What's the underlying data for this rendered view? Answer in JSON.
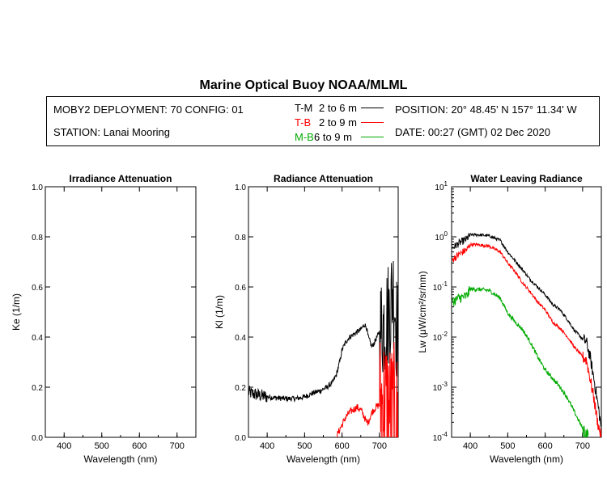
{
  "title": "Marine Optical Buoy NOAA/MLML",
  "info": {
    "deployment": "MOBY2 DEPLOYMENT: 70 CONFIG: 01",
    "station": "STATION: Lanai Mooring",
    "position": "POSITION: 20° 48.45' N   157° 11.34' W",
    "date": "DATE: 00:27 (GMT) 02 Dec 2020",
    "legend": [
      {
        "code": "T-M",
        "range": "2 to 6  m",
        "color": "#000000"
      },
      {
        "code": "T-B",
        "range": "2 to 9  m",
        "color": "#ff0000"
      },
      {
        "code": "M-B",
        "range": "6 to 9  m",
        "color": "#00aa00"
      }
    ]
  },
  "chart_data": [
    {
      "type": "line",
      "title": "Irradiance Attenuation",
      "xlabel": "Wavelength (nm)",
      "ylabel": "Ke  (1/m)",
      "xlim": [
        350,
        750
      ],
      "ylim": [
        0,
        1.0
      ],
      "xticks": [
        "400",
        "500",
        "600",
        "700"
      ],
      "yticks": [
        "0.0",
        "0.2",
        "0.4",
        "0.6",
        "0.8",
        "1.0"
      ],
      "series": []
    },
    {
      "type": "line",
      "title": "Radiance Attenuation",
      "xlabel": "Wavelength (nm)",
      "ylabel": "Kl  (1/m)",
      "xlim": [
        350,
        750
      ],
      "ylim": [
        0,
        1.0
      ],
      "xticks": [
        "400",
        "500",
        "600",
        "700"
      ],
      "yticks": [
        "0.0",
        "0.2",
        "0.4",
        "0.6",
        "0.8",
        "1.0"
      ],
      "series": [
        {
          "color": "#000000",
          "noise": 0.03,
          "x": [
            350,
            360,
            380,
            400,
            420,
            450,
            480,
            500,
            520,
            540,
            560,
            575,
            585,
            595,
            600,
            610,
            620,
            640,
            650,
            660,
            665,
            670,
            680,
            700,
            710,
            720,
            730,
            735,
            740,
            745,
            750
          ],
          "y": [
            0.18,
            0.175,
            0.167,
            0.162,
            0.158,
            0.154,
            0.155,
            0.162,
            0.175,
            0.185,
            0.2,
            0.22,
            0.25,
            0.31,
            0.35,
            0.38,
            0.4,
            0.42,
            0.43,
            0.45,
            0.44,
            0.4,
            0.36,
            0.42,
            0.45,
            0.48,
            0.52,
            0.6,
            0.55,
            0.45,
            0.4
          ]
        },
        {
          "color": "#ff0000",
          "noise": 0.04,
          "x": [
            585,
            590,
            600,
            610,
            620,
            630,
            640,
            650,
            660,
            665,
            670,
            680,
            690,
            700,
            710,
            720,
            730,
            740,
            750
          ],
          "y": [
            0.0,
            0.02,
            0.05,
            0.08,
            0.1,
            0.11,
            0.12,
            0.11,
            0.08,
            0.06,
            0.06,
            0.1,
            0.12,
            0.13,
            0.14,
            0.12,
            0.1,
            0.08,
            0.05
          ]
        }
      ]
    },
    {
      "type": "line",
      "title": "Water Leaving Radiance",
      "xlabel": "Wavelength (nm)",
      "ylabel": "Lw  (μW/cm²/sr/nm)",
      "xlim": [
        350,
        750
      ],
      "ylim": [
        0.0001,
        10
      ],
      "yscale": "log",
      "xticks": [
        "400",
        "500",
        "600",
        "700"
      ],
      "yticks": [
        "10-4",
        "10-3",
        "10-2",
        "10-1",
        "100",
        "101"
      ],
      "series": [
        {
          "color": "#000000",
          "noise": 0.05,
          "x": [
            352,
            370,
            390,
            400,
            420,
            450,
            480,
            500,
            520,
            540,
            560,
            580,
            600,
            620,
            640,
            660,
            680,
            690,
            700,
            710,
            720,
            730,
            740,
            750
          ],
          "y": [
            0.6,
            0.75,
            0.9,
            1.1,
            1.1,
            1.05,
            0.85,
            0.5,
            0.33,
            0.22,
            0.14,
            0.1,
            0.07,
            0.045,
            0.035,
            0.022,
            0.013,
            0.011,
            0.009,
            0.008,
            0.004,
            0.0015,
            0.0005,
            0.00015
          ]
        },
        {
          "color": "#ff0000",
          "noise": 0.05,
          "x": [
            352,
            370,
            390,
            400,
            420,
            450,
            480,
            500,
            520,
            540,
            560,
            580,
            600,
            620,
            640,
            660,
            680,
            690,
            700,
            710,
            720,
            730,
            740,
            750
          ],
          "y": [
            0.35,
            0.45,
            0.55,
            0.7,
            0.7,
            0.65,
            0.5,
            0.3,
            0.2,
            0.12,
            0.08,
            0.05,
            0.035,
            0.02,
            0.015,
            0.01,
            0.006,
            0.005,
            0.004,
            0.0035,
            0.0015,
            0.0006,
            0.0002,
            0.0001
          ]
        },
        {
          "color": "#00aa00",
          "noise": 0.07,
          "x": [
            352,
            370,
            390,
            400,
            420,
            450,
            480,
            500,
            520,
            540,
            560,
            580,
            600,
            620,
            640,
            660,
            680,
            700,
            715
          ],
          "y": [
            0.05,
            0.06,
            0.065,
            0.09,
            0.09,
            0.085,
            0.06,
            0.03,
            0.02,
            0.014,
            0.008,
            0.004,
            0.0022,
            0.0015,
            0.001,
            0.0006,
            0.0003,
            0.00015,
            0.0001
          ]
        }
      ]
    }
  ]
}
